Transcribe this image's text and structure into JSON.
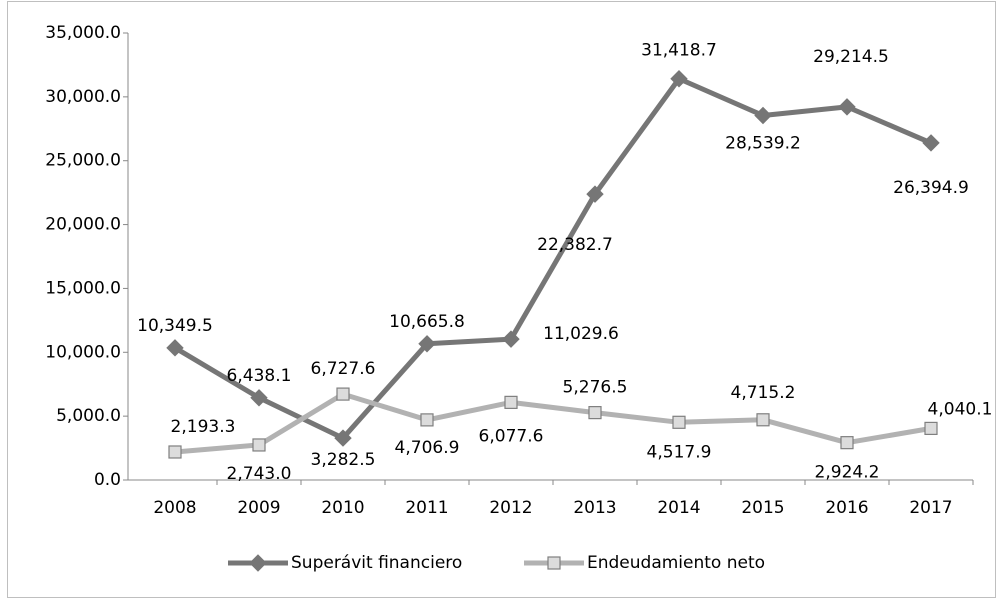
{
  "chart_data": {
    "type": "line",
    "categories": [
      "2008",
      "2009",
      "2010",
      "2011",
      "2012",
      "2013",
      "2014",
      "2015",
      "2016",
      "2017"
    ],
    "series": [
      {
        "name": "Superávit financiero",
        "color": "#767676",
        "marker": "diamond",
        "values": [
          10349.5,
          6438.1,
          3282.5,
          10665.8,
          11029.6,
          22382.7,
          31418.7,
          28539.2,
          29214.5,
          26394.9
        ],
        "value_labels": [
          "10,349.5",
          "6,438.1",
          "3,282.5",
          "10,665.8",
          "11,029.6",
          "22,382.7",
          "31,418.7",
          "28,539.2",
          "29,214.5",
          "26,394.9"
        ]
      },
      {
        "name": "Endeudamiento neto",
        "color": "#b2b2b2",
        "marker": "square",
        "values": [
          2193.3,
          2743.0,
          6727.6,
          4706.9,
          6077.6,
          5276.5,
          4517.9,
          4715.2,
          2924.2,
          4040.1
        ],
        "value_labels": [
          "2,193.3",
          "2,743.0",
          "6,727.6",
          "4,706.9",
          "6,077.6",
          "5,276.5",
          "4,517.9",
          "4,715.2",
          "2,924.2",
          "4,040.1"
        ]
      }
    ],
    "ylim": [
      0,
      35000
    ],
    "yticks": [
      {
        "value": 0,
        "label": "0.0"
      },
      {
        "value": 5000,
        "label": "5,000.0"
      },
      {
        "value": 10000,
        "label": "10,000.0"
      },
      {
        "value": 15000,
        "label": "15,000.0"
      },
      {
        "value": 20000,
        "label": "20,000.0"
      },
      {
        "value": 25000,
        "label": "25,000.0"
      },
      {
        "value": 30000,
        "label": "30,000.0"
      },
      {
        "value": 35000,
        "label": "35,000.0"
      }
    ],
    "grid": false,
    "legend": "bottom"
  }
}
